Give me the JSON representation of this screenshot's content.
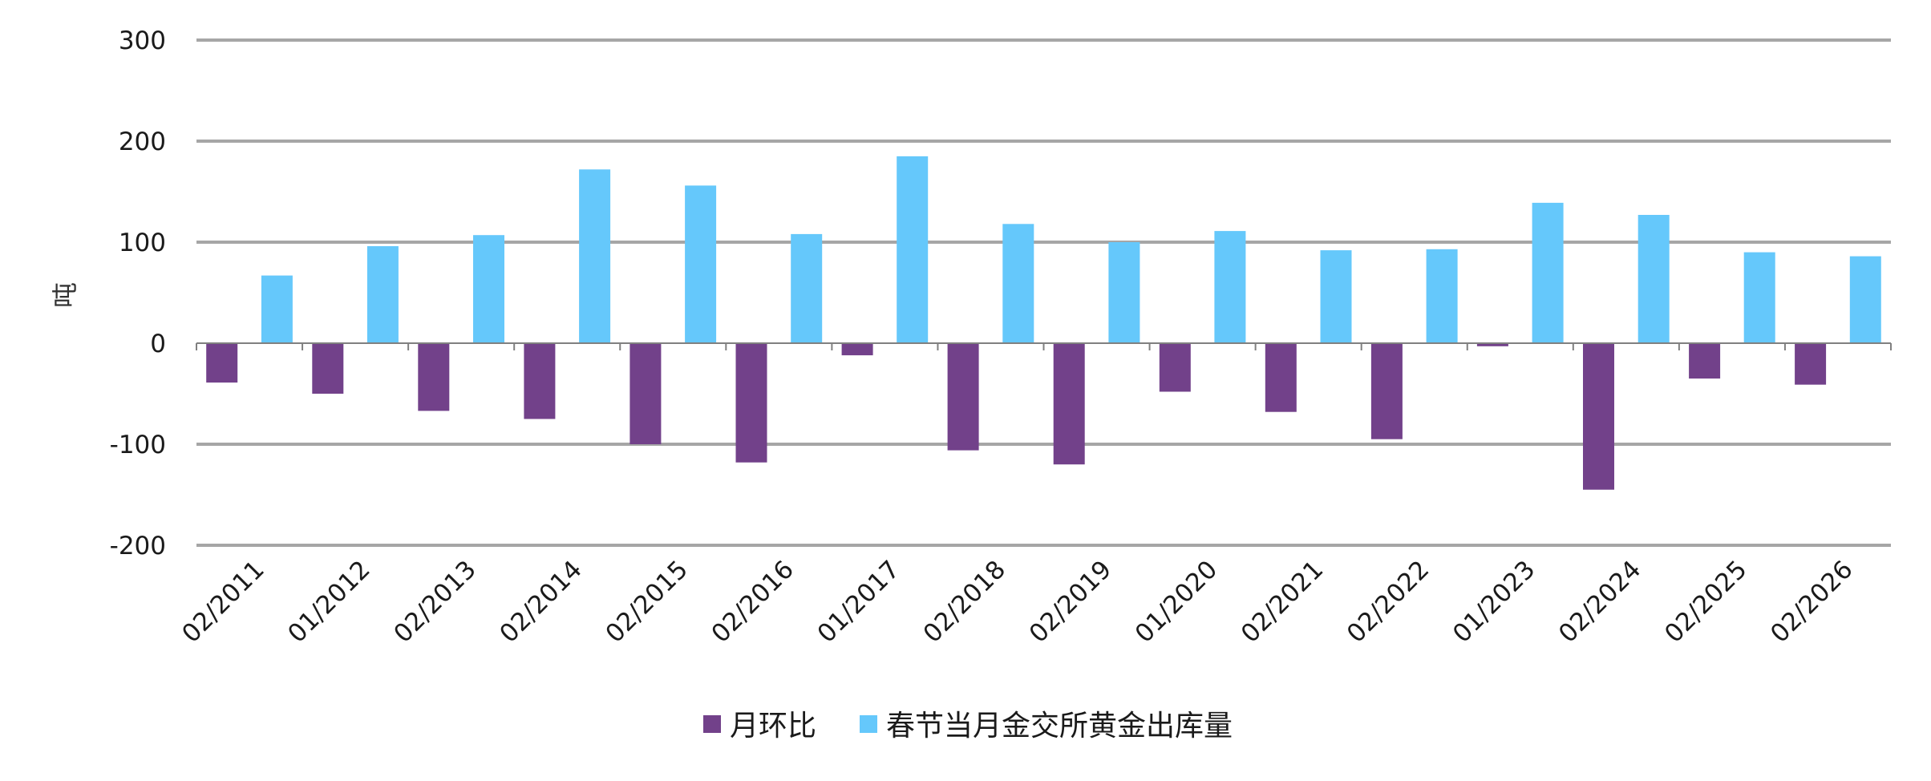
{
  "chart_data": {
    "type": "bar",
    "title": "",
    "xlabel": "",
    "ylabel": "吨",
    "ylim": [
      -200,
      300
    ],
    "yticks": [
      -200,
      -100,
      0,
      100,
      200,
      300
    ],
    "ytick_labels": [
      "-200",
      "-100",
      "0",
      "100",
      "200",
      "300"
    ],
    "grid": true,
    "legend_position": "bottom",
    "categories": [
      "02/2011",
      "01/2012",
      "02/2013",
      "02/2014",
      "02/2015",
      "02/2016",
      "01/2017",
      "02/2018",
      "02/2019",
      "01/2020",
      "02/2021",
      "02/2022",
      "01/2023",
      "02/2024",
      "02/2025",
      "02/2026"
    ],
    "series": [
      {
        "name": "月环比",
        "color": "#72418a",
        "values": [
          -39,
          -50,
          -67,
          -75,
          -100,
          -118,
          -12,
          -106,
          -120,
          -48,
          -68,
          -95,
          -3,
          -145,
          -35,
          -41
        ]
      },
      {
        "name": "春节当月金交所黄金出库量",
        "color": "#65c8fb",
        "values": [
          67,
          96,
          107,
          172,
          156,
          108,
          185,
          118,
          100,
          111,
          92,
          93,
          139,
          127,
          90,
          86
        ]
      }
    ]
  },
  "colors": {
    "grid": "#a6a6a6",
    "axis": "#808080",
    "text": "#1a1a1a"
  }
}
